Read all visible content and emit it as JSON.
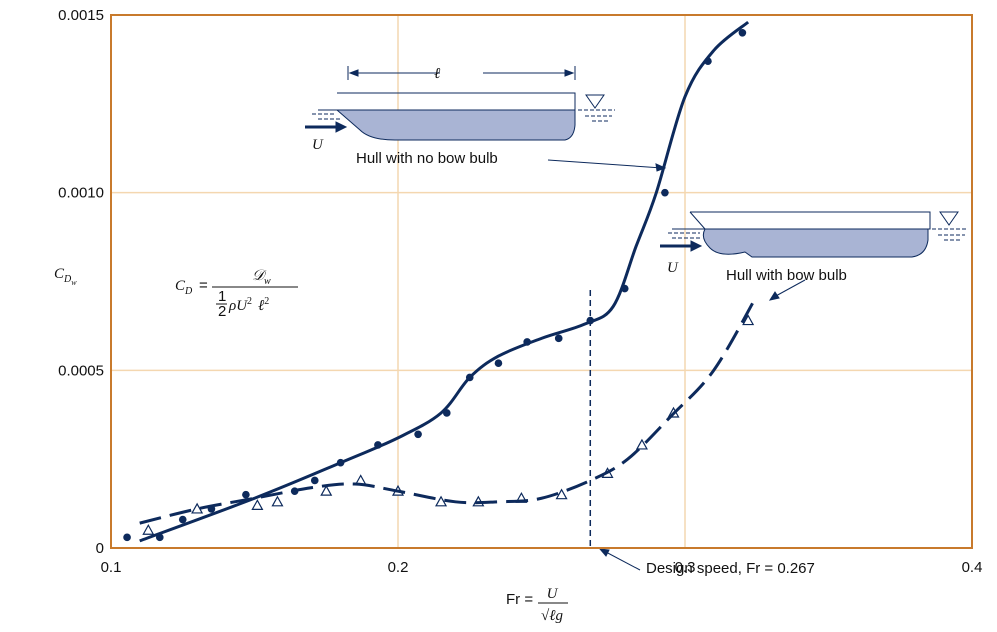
{
  "chart_data": {
    "type": "scatter",
    "ylabel": "C",
    "ylabel_sub": "D",
    "ylabel_subsub": "w",
    "xlabel": "Fr =",
    "xlabel_num": "U",
    "xlabel_den": "√ℓg",
    "xlim": [
      0.1,
      0.4
    ],
    "xticks": [
      0.1,
      0.2,
      0.3,
      0.4
    ],
    "ylim": [
      0,
      0.0015
    ],
    "yticks": [
      0,
      0.0005,
      {
        "value": 0.001,
        "label": "0.0010"
      },
      0.0015
    ],
    "grid": true,
    "series": [
      {
        "name": "Hull with no bow bulb",
        "marker": "circle",
        "color": "#0d2a5c",
        "x": [
          0.1056,
          0.117,
          0.125,
          0.135,
          0.147,
          0.164,
          0.171,
          0.18,
          0.193,
          0.207,
          0.217,
          0.225,
          0.235,
          0.245,
          0.256,
          0.267,
          0.279,
          0.293,
          0.308,
          0.32
        ],
        "values": [
          3e-05,
          3e-05,
          8e-05,
          0.00011,
          0.00015,
          0.00016,
          0.00019,
          0.00024,
          0.00029,
          0.00032,
          0.00038,
          0.00048,
          0.00052,
          0.00058,
          0.00059,
          0.00064,
          0.00073,
          0.001,
          0.00137,
          0.00145
        ]
      },
      {
        "name": "Hull with bow bulb",
        "marker": "triangle",
        "color": "#0d2a5c",
        "x": [
          0.113,
          0.13,
          0.151,
          0.158,
          0.175,
          0.187,
          0.2,
          0.215,
          0.228,
          0.243,
          0.257,
          0.273,
          0.285,
          0.296,
          0.322
        ],
        "values": [
          5e-05,
          0.00011,
          0.00012,
          0.00013,
          0.00016,
          0.00019,
          0.00016,
          0.00013,
          0.00013,
          0.00014,
          0.00015,
          0.00021,
          0.00029,
          0.00038,
          0.00064
        ]
      },
      {
        "marker": "solid-line",
        "color": "#0d2a5c",
        "x": [
          0.11,
          0.15,
          0.18,
          0.2,
          0.215,
          0.225,
          0.235,
          0.25,
          0.265,
          0.275,
          0.283,
          0.29,
          0.3,
          0.31,
          0.322
        ],
        "values": [
          2e-05,
          0.00014,
          0.00024,
          0.00031,
          0.00038,
          0.00048,
          0.00054,
          0.00059,
          0.00063,
          0.00068,
          0.00085,
          0.001,
          0.00127,
          0.0014,
          0.00148
        ]
      },
      {
        "marker": "dashed-line",
        "color": "#0d2a5c",
        "x": [
          0.11,
          0.13,
          0.15,
          0.17,
          0.185,
          0.2,
          0.22,
          0.235,
          0.25,
          0.267,
          0.28,
          0.295,
          0.31,
          0.325
        ],
        "values": [
          7e-05,
          0.00011,
          0.00014,
          0.00017,
          0.00018,
          0.00016,
          0.00013,
          0.00013,
          0.00014,
          0.00019,
          0.00025,
          0.00037,
          0.0005,
          0.00071
        ]
      }
    ],
    "design_speed": 0.267,
    "design_speed_label": "Design speed, Fr = 0.267",
    "formula": {
      "lhs": "C",
      "lhs_sub": "D",
      "eq": "=",
      "num": "𝒟",
      "num_sub": "w",
      "den_half": "1",
      "den_two": "2",
      "den": "ρU",
      "den_sq": "2",
      "den_l": "ℓ",
      "den_l_sq": "2"
    },
    "hull_length": "ℓ",
    "flow_label": "U",
    "flow_label_2": "U"
  }
}
